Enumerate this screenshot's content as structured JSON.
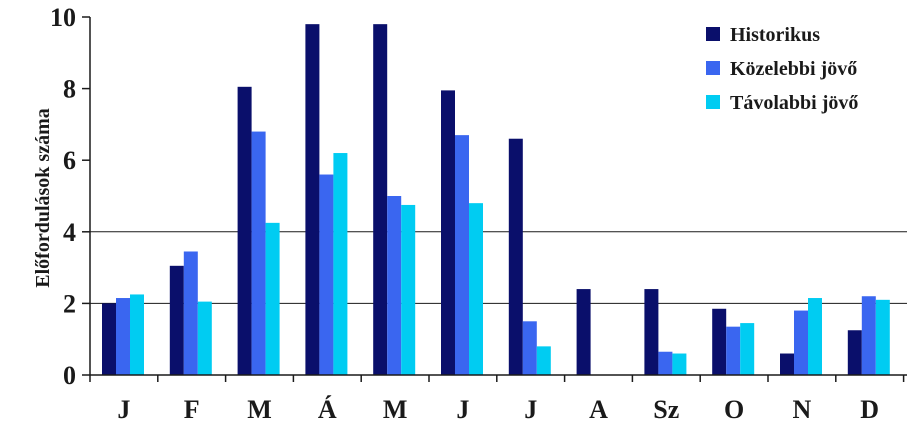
{
  "chart_data": {
    "type": "bar",
    "title": "",
    "xlabel": "",
    "ylabel": "Előfordulások száma",
    "ylim": [
      0,
      10
    ],
    "yticks": [
      "0",
      "2",
      "4",
      "6",
      "8",
      "10"
    ],
    "grid": "horizontal lines at 2 and 4",
    "legend_position": "top-right",
    "categories": [
      "J",
      "F",
      "M",
      "Á",
      "M",
      "J",
      "J",
      "A",
      "Sz",
      "O",
      "N",
      "D"
    ],
    "series": [
      {
        "name": "Historikus",
        "color": "#0a0f6b",
        "values": [
          2.0,
          3.05,
          8.05,
          9.8,
          9.8,
          7.95,
          6.6,
          2.4,
          2.4,
          1.85,
          0.6,
          1.25
        ]
      },
      {
        "name": "Közelebbi jövő",
        "color": "#3a66f0",
        "values": [
          2.15,
          3.45,
          6.8,
          5.6,
          5.0,
          6.7,
          1.5,
          0,
          0.65,
          1.35,
          1.8,
          2.2
        ]
      },
      {
        "name": "Távolabbi jövő",
        "color": "#00ccf2",
        "values": [
          2.25,
          2.05,
          4.25,
          6.2,
          4.75,
          4.8,
          0.8,
          0,
          0.6,
          1.45,
          2.15,
          2.1
        ]
      }
    ]
  }
}
